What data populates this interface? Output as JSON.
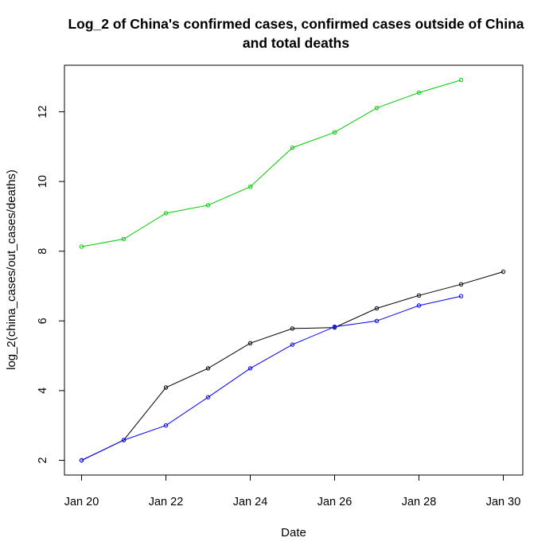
{
  "chart_data": {
    "type": "line",
    "title_lines": [
      "Log_2 of China's confirmed cases, confirmed cases outside of China",
      "and total deaths"
    ],
    "xlabel": "Date",
    "ylabel": "log_2(china_cases/out_cases/deaths)",
    "x_ticks": [
      "Jan 20",
      "Jan 22",
      "Jan 24",
      "Jan 26",
      "Jan 28",
      "Jan 30"
    ],
    "y_ticks": [
      "2",
      "4",
      "6",
      "8",
      "10",
      "12"
    ],
    "xlim": [
      "Jan 20",
      "Jan 30"
    ],
    "ylim": [
      2,
      13
    ],
    "x_scale": "date",
    "grid": false,
    "series": [
      {
        "color": "#00cc00",
        "x": [
          "Jan 20",
          "Jan 21",
          "Jan 22",
          "Jan 23",
          "Jan 24",
          "Jan 25",
          "Jan 26",
          "Jan 27",
          "Jan 28",
          "Jan 29"
        ],
        "values": [
          8.13,
          8.35,
          9.09,
          9.32,
          9.85,
          10.97,
          11.41,
          12.11,
          12.55,
          12.91
        ]
      },
      {
        "color": "#000000",
        "x": [
          "Jan 20",
          "Jan 21",
          "Jan 22",
          "Jan 23",
          "Jan 24",
          "Jan 25",
          "Jan 26",
          "Jan 27",
          "Jan 28",
          "Jan 29",
          "Jan 30"
        ],
        "values": [
          2.0,
          2.58,
          4.09,
          4.64,
          5.36,
          5.78,
          5.81,
          6.36,
          6.73,
          7.05,
          7.41
        ]
      },
      {
        "color": "#0000ff",
        "x": [
          "Jan 20",
          "Jan 21",
          "Jan 22",
          "Jan 23",
          "Jan 24",
          "Jan 25",
          "Jan 26",
          "Jan 27",
          "Jan 28",
          "Jan 29"
        ],
        "values": [
          2.0,
          2.58,
          3.0,
          3.81,
          4.64,
          5.32,
          5.83,
          6.0,
          6.44,
          6.71
        ]
      }
    ]
  }
}
